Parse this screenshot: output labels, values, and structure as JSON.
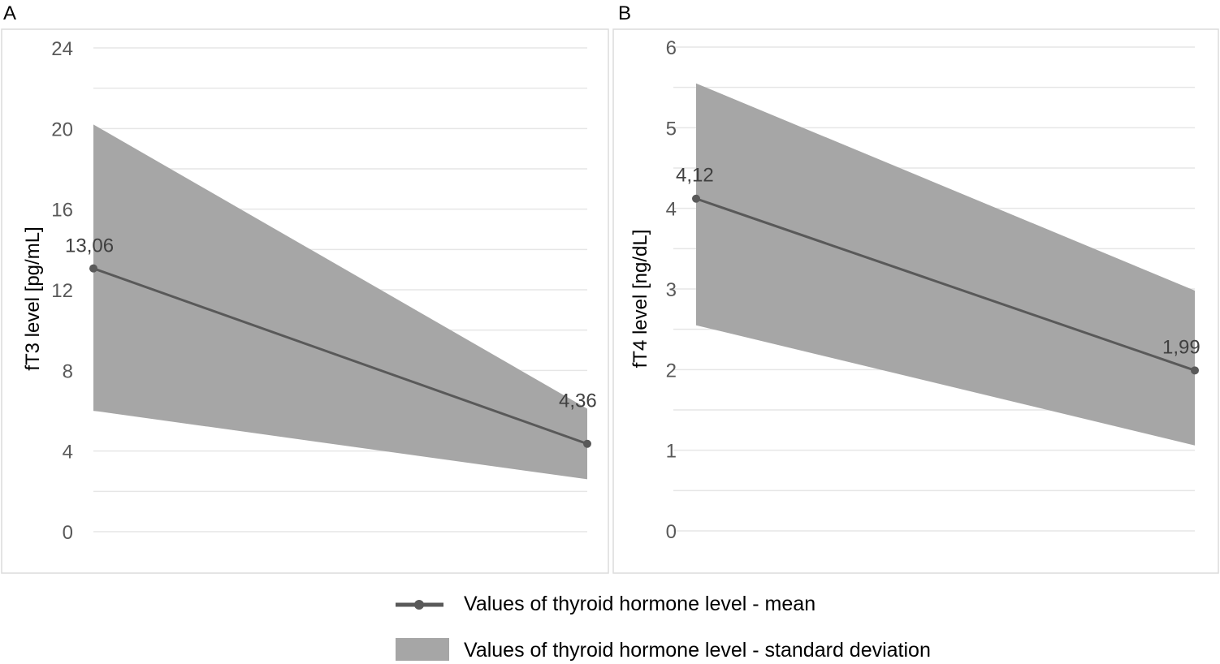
{
  "chart_data": [
    {
      "panel": "A",
      "type": "line",
      "ylabel": "fT3 level [pg/mL]",
      "ylim": [
        0,
        24
      ],
      "yticks": [
        0,
        4,
        8,
        12,
        16,
        20,
        24
      ],
      "minor_grid_step": 2,
      "series": [
        {
          "name": "Values of thyroid hormone level - mean",
          "values": [
            13.06,
            4.36
          ],
          "labels": [
            "13,06",
            "4,36"
          ]
        },
        {
          "name": "Values of thyroid hormone level - standard deviation",
          "lower": [
            6.0,
            2.6
          ],
          "upper": [
            20.2,
            6.1
          ]
        }
      ]
    },
    {
      "panel": "B",
      "type": "line",
      "ylabel": "fT4 level [ng/dL]",
      "ylim": [
        0,
        6
      ],
      "yticks": [
        0,
        1,
        2,
        3,
        4,
        5,
        6
      ],
      "minor_grid_step": 0.5,
      "series": [
        {
          "name": "Values of thyroid hormone level - mean",
          "values": [
            4.12,
            1.99
          ],
          "labels": [
            "4,12",
            "1,99"
          ]
        },
        {
          "name": "Values of thyroid hormone level - standard deviation",
          "lower": [
            2.55,
            1.06
          ],
          "upper": [
            5.55,
            2.98
          ]
        }
      ]
    }
  ],
  "legend": {
    "mean_label": "Values of thyroid hormone level - mean",
    "sd_label": "Values of thyroid hormone level - standard deviation"
  },
  "colors": {
    "band": "#a6a6a6",
    "line": "#595959",
    "grid": "#e6e6e6",
    "frame": "#dcdcdc"
  }
}
